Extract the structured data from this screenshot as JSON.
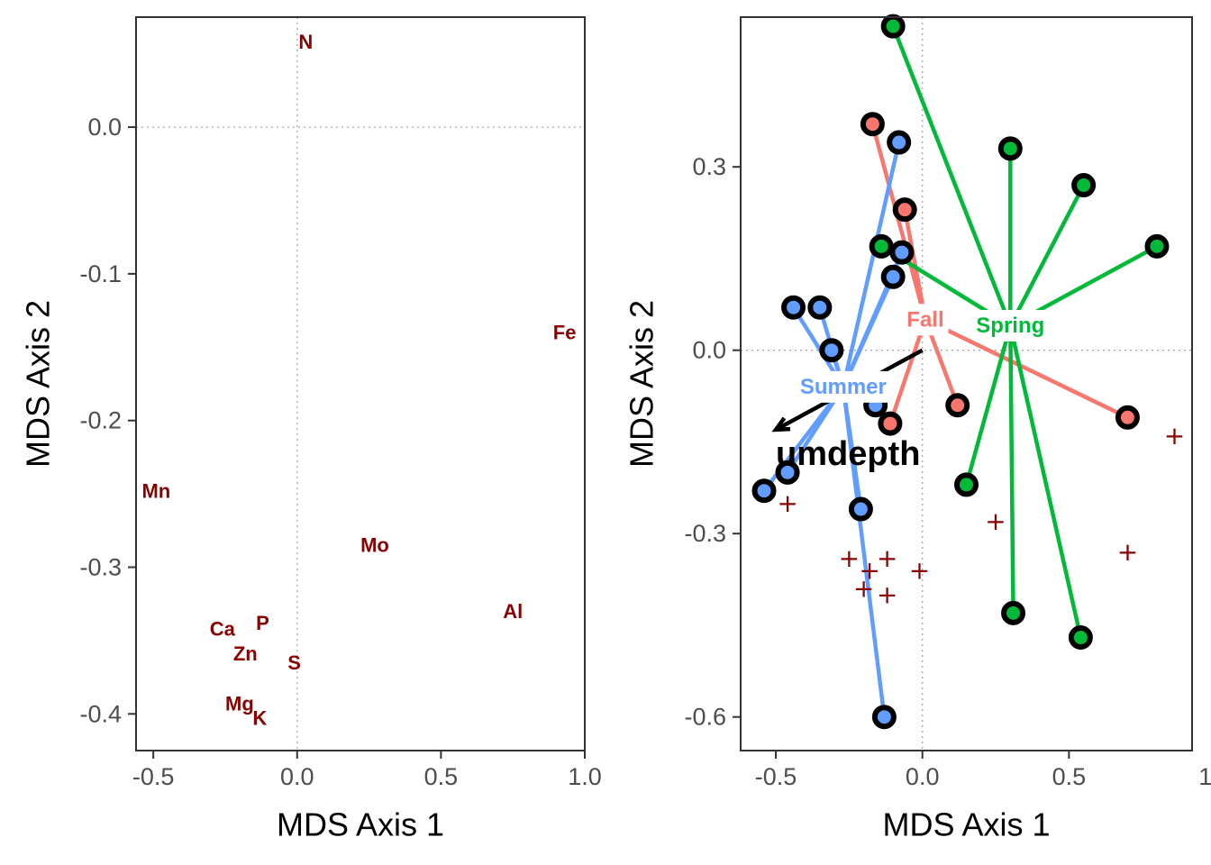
{
  "chart_data": [
    {
      "type": "scatter",
      "xlabel": "MDS Axis 1",
      "ylabel": "MDS Axis 2",
      "xlim": [
        -0.56,
        1.0
      ],
      "ylim": [
        -0.425,
        0.075
      ],
      "xticks": [
        -0.5,
        0.0,
        0.5,
        1.0
      ],
      "xtick_labels": [
        "-0.5",
        "0.0",
        "0.5",
        "1.0"
      ],
      "yticks": [
        0.0,
        -0.1,
        -0.2,
        -0.3,
        -0.4
      ],
      "ytick_labels": [
        "0.0",
        "-0.1",
        "-0.2",
        "-0.3",
        "-0.4"
      ],
      "reference_lines": {
        "x": 0,
        "y": 0
      },
      "grid": false,
      "label_color": "#8b0000",
      "labels": [
        {
          "text": "N",
          "x": 0.03,
          "y": 0.058
        },
        {
          "text": "Fe",
          "x": 0.93,
          "y": -0.14
        },
        {
          "text": "Mn",
          "x": -0.49,
          "y": -0.248
        },
        {
          "text": "Mo",
          "x": 0.27,
          "y": -0.285
        },
        {
          "text": "Al",
          "x": 0.75,
          "y": -0.33
        },
        {
          "text": "Ca",
          "x": -0.26,
          "y": -0.342
        },
        {
          "text": "P",
          "x": -0.12,
          "y": -0.338
        },
        {
          "text": "Zn",
          "x": -0.18,
          "y": -0.359
        },
        {
          "text": "S",
          "x": -0.01,
          "y": -0.365
        },
        {
          "text": "Mg",
          "x": -0.2,
          "y": -0.393
        },
        {
          "text": "K",
          "x": -0.13,
          "y": -0.403
        }
      ]
    },
    {
      "type": "scatter",
      "xlabel": "MDS Axis 1",
      "ylabel": "MDS Axis 2",
      "xlim": [
        -0.62,
        0.92
      ],
      "ylim": [
        -0.655,
        0.545
      ],
      "xticks": [
        -0.5,
        0.0,
        0.5,
        1.0
      ],
      "xtick_labels": [
        "-0.5",
        "0.0",
        "0.5",
        "1.0"
      ],
      "yticks": [
        0.3,
        0.0,
        -0.3,
        -0.6
      ],
      "ytick_labels": [
        "0.3",
        "0.0",
        "-0.3",
        "-0.6"
      ],
      "reference_lines": {
        "x": 0,
        "y": 0
      },
      "grid": false,
      "groups": [
        {
          "name": "Fall",
          "label": "Fall",
          "color": "#f8766d",
          "centroid": [
            0.01,
            0.05
          ],
          "points": [
            [
              -0.17,
              0.37
            ],
            [
              -0.06,
              0.23
            ],
            [
              0.12,
              -0.09
            ],
            [
              0.7,
              -0.11
            ],
            [
              -0.11,
              -0.12
            ]
          ]
        },
        {
          "name": "Spring",
          "label": "Spring",
          "color": "#00ba38",
          "centroid": [
            0.3,
            0.04
          ],
          "points": [
            [
              -0.1,
              0.53
            ],
            [
              0.3,
              0.33
            ],
            [
              0.55,
              0.27
            ],
            [
              0.8,
              0.17
            ],
            [
              -0.14,
              0.17
            ],
            [
              0.15,
              -0.22
            ],
            [
              0.31,
              -0.43
            ],
            [
              0.54,
              -0.47
            ]
          ]
        },
        {
          "name": "Summer",
          "label": "Summer",
          "color": "#619cff",
          "centroid": [
            -0.27,
            -0.06
          ],
          "points": [
            [
              -0.08,
              0.34
            ],
            [
              -0.07,
              0.16
            ],
            [
              -0.1,
              0.12
            ],
            [
              -0.44,
              0.07
            ],
            [
              -0.35,
              0.07
            ],
            [
              -0.31,
              0.0
            ],
            [
              -0.16,
              -0.09
            ],
            [
              -0.46,
              -0.2
            ],
            [
              -0.54,
              -0.23
            ],
            [
              -0.21,
              -0.26
            ],
            [
              -0.13,
              -0.6
            ]
          ]
        }
      ],
      "species_marker": "+",
      "species_color": "#8b0000",
      "species": [
        [
          0.02,
          0.06
        ],
        [
          0.86,
          -0.14
        ],
        [
          -0.46,
          -0.25
        ],
        [
          0.25,
          -0.28
        ],
        [
          0.7,
          -0.33
        ],
        [
          -0.25,
          -0.34
        ],
        [
          -0.12,
          -0.34
        ],
        [
          -0.18,
          -0.36
        ],
        [
          -0.01,
          -0.36
        ],
        [
          -0.2,
          -0.39
        ],
        [
          -0.12,
          -0.4
        ]
      ],
      "vector": {
        "label": "umdepth",
        "from": [
          0.0,
          0.0
        ],
        "to": [
          -0.5,
          -0.13
        ],
        "label_at": [
          -0.5,
          -0.17
        ],
        "color": "#000000"
      }
    }
  ]
}
